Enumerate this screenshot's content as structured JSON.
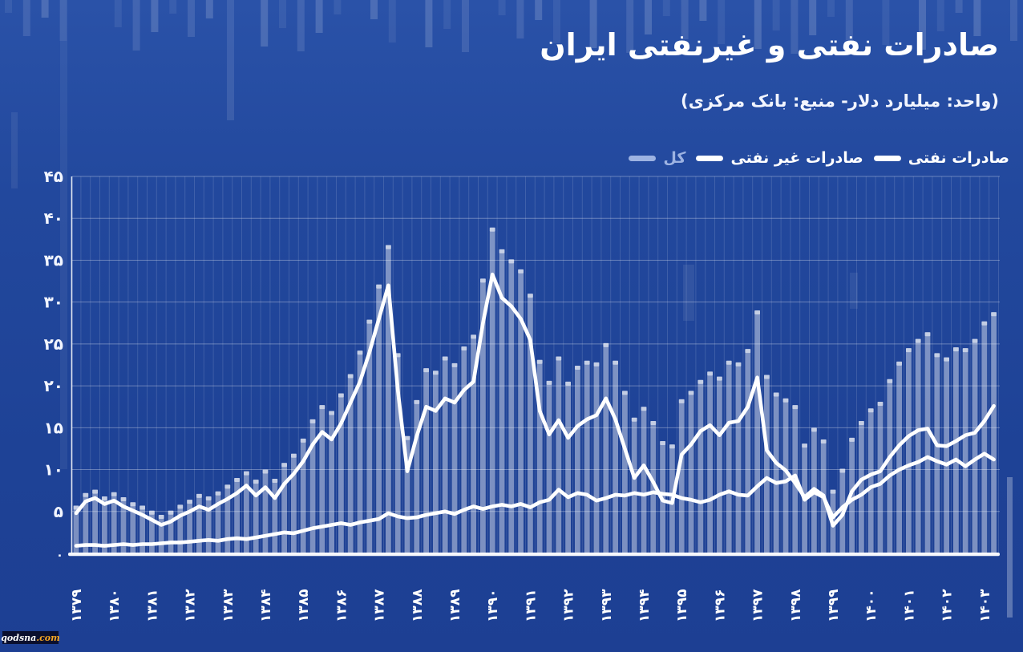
{
  "page": {
    "background": "#20459b",
    "accent_muted": "#9db3e2",
    "line_color": "#ffffff"
  },
  "header": {
    "title": "صادرات نفتی و غیرنفتی ایران",
    "subtitle": "(واحد: میلیارد دلار- منبع: بانک مرکزی)"
  },
  "legend": [
    {
      "label": "صادرات نفتی",
      "color": "#ffffff",
      "label_color": "#ffffff"
    },
    {
      "label": "صادرات غیر نفتی",
      "color": "#ffffff",
      "label_color": "#ffffff"
    },
    {
      "label": "کل",
      "color": "#9db3e2",
      "label_color": "#9db3e2"
    }
  ],
  "watermark": {
    "name": "qodsna",
    "tld": ".com"
  },
  "chart_data": {
    "type": "bar+line",
    "x_unit": "quarter",
    "quarters_per_year": 4,
    "years_fa": [
      "۱۳۷۹",
      "۱۳۸۰",
      "۱۳۸۱",
      "۱۳۸۲",
      "۱۳۸۳",
      "۱۳۸۴",
      "۱۳۸۵",
      "۱۳۸۶",
      "۱۳۸۷",
      "۱۳۸۸",
      "۱۳۸۹",
      "۱۳۹۰",
      "۱۳۹۱",
      "۱۳۹۲",
      "۱۳۹۳",
      "۱۳۹۴",
      "۱۳۹۵",
      "۱۳۹۶",
      "۱۳۹۷",
      "۱۳۹۸",
      "۱۳۹۹",
      "۱۴۰۰",
      "۱۴۰۱",
      "۱۴۰۲",
      "۱۴۰۳"
    ],
    "years": [
      1379,
      1380,
      1381,
      1382,
      1383,
      1384,
      1385,
      1386,
      1387,
      1388,
      1389,
      1390,
      1391,
      1392,
      1393,
      1394,
      1395,
      1396,
      1397,
      1398,
      1399,
      1400,
      1401,
      1402,
      1403
    ],
    "ylim": [
      0,
      45
    ],
    "y_ticks": [
      0,
      5,
      10,
      15,
      20,
      25,
      30,
      35,
      40,
      45
    ],
    "y_ticks_fa": [
      "۰",
      "۵",
      "۱۰",
      "۱۵",
      "۲۰",
      "۲۵",
      "۳۰",
      "۳۵",
      "۴۰",
      "۴۵"
    ],
    "grid": true,
    "legend_position": "top-right",
    "series": [
      {
        "name": "کل",
        "type": "bar",
        "color": "rgba(255,255,255,0.42)",
        "values": [
          5.7,
          7.2,
          7.6,
          6.8,
          7.3,
          6.7,
          6.1,
          5.7,
          5.1,
          4.6,
          5.1,
          5.8,
          6.4,
          7.1,
          6.8,
          7.4,
          8.2,
          9.0,
          9.8,
          8.8,
          10.0,
          8.9,
          10.8,
          11.9,
          13.7,
          16.0,
          17.7,
          17.0,
          19.1,
          21.4,
          24.2,
          27.9,
          32.1,
          36.8,
          23.9,
          14.0,
          18.3,
          22.1,
          21.8,
          23.5,
          22.7,
          24.7,
          26.1,
          32.8,
          38.9,
          36.3,
          35.1,
          33.9,
          31.0,
          23.1,
          20.6,
          23.5,
          20.5,
          22.4,
          23.0,
          22.8,
          25.1,
          23.0,
          19.4,
          16.2,
          17.5,
          15.8,
          13.4,
          13.0,
          18.4,
          19.4,
          20.7,
          21.7,
          21.1,
          23.0,
          22.8,
          24.4,
          29.0,
          21.3,
          19.2,
          18.5,
          17.7,
          13.1,
          15.0,
          13.6,
          7.6,
          10.1,
          13.8,
          15.8,
          17.3,
          18.1,
          20.8,
          22.9,
          24.5,
          25.6,
          26.4,
          23.9,
          23.4,
          24.6,
          24.5,
          25.6,
          27.7,
          28.8
        ]
      },
      {
        "name": "صادرات نفتی",
        "type": "line",
        "color": "#ffffff",
        "values": [
          4.8,
          6.2,
          6.6,
          5.9,
          6.3,
          5.6,
          5.1,
          4.6,
          4.0,
          3.4,
          3.8,
          4.5,
          5.0,
          5.6,
          5.2,
          5.9,
          6.5,
          7.2,
          8.1,
          6.9,
          7.9,
          6.6,
          8.3,
          9.5,
          11.0,
          13.0,
          14.5,
          13.6,
          15.5,
          18.0,
          20.5,
          24.0,
          28.0,
          32.0,
          19.5,
          9.8,
          14.0,
          17.5,
          17.0,
          18.5,
          18.0,
          19.5,
          20.5,
          27.5,
          33.3,
          30.5,
          29.5,
          28.0,
          25.5,
          17.0,
          14.2,
          15.9,
          13.8,
          15.2,
          16.0,
          16.5,
          18.5,
          16.0,
          12.5,
          9.0,
          10.5,
          8.5,
          6.3,
          6.0,
          11.8,
          13.0,
          14.6,
          15.3,
          14.1,
          15.6,
          15.8,
          17.5,
          21.0,
          12.3,
          10.8,
          9.9,
          8.4,
          6.7,
          7.7,
          6.9,
          3.3,
          4.6,
          7.4,
          8.8,
          9.4,
          9.8,
          11.5,
          12.9,
          14.0,
          14.7,
          14.9,
          12.9,
          12.8,
          13.4,
          14.1,
          14.4,
          15.8,
          17.6
        ]
      },
      {
        "name": "صادرات غیر نفتی",
        "type": "line",
        "color": "#ffffff",
        "values": [
          0.9,
          1.0,
          1.0,
          0.9,
          1.0,
          1.1,
          1.0,
          1.1,
          1.1,
          1.2,
          1.3,
          1.3,
          1.4,
          1.5,
          1.6,
          1.5,
          1.7,
          1.8,
          1.7,
          1.9,
          2.1,
          2.3,
          2.5,
          2.4,
          2.7,
          3.0,
          3.2,
          3.4,
          3.6,
          3.4,
          3.7,
          3.9,
          4.1,
          4.8,
          4.4,
          4.2,
          4.3,
          4.6,
          4.8,
          5.0,
          4.7,
          5.2,
          5.6,
          5.3,
          5.6,
          5.8,
          5.6,
          5.9,
          5.5,
          6.1,
          6.4,
          7.6,
          6.7,
          7.2,
          7.0,
          6.3,
          6.6,
          7.0,
          6.9,
          7.2,
          7.0,
          7.3,
          7.1,
          7.0,
          6.6,
          6.4,
          6.1,
          6.4,
          7.0,
          7.4,
          7.0,
          6.9,
          8.0,
          9.0,
          8.4,
          8.6,
          9.3,
          6.4,
          7.3,
          6.7,
          4.3,
          5.5,
          6.4,
          7.0,
          7.9,
          8.3,
          9.3,
          10.0,
          10.5,
          10.9,
          11.5,
          11.0,
          10.6,
          11.2,
          10.4,
          11.2,
          11.9,
          11.2
        ]
      }
    ]
  }
}
